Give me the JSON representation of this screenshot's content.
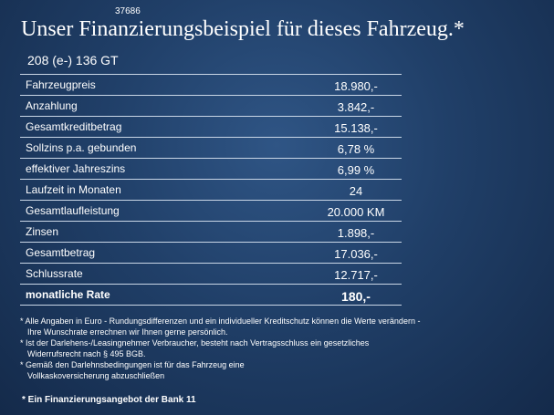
{
  "slide_id": "37686",
  "title": "Unser Finanzierungsbeispiel für dieses Fahrzeug.*",
  "model": "208 (e-) 136 GT",
  "rows": [
    {
      "label": "Fahrzeugpreis",
      "value": "18.980,-"
    },
    {
      "label": "Anzahlung",
      "value": "3.842,-"
    },
    {
      "label": "Gesamtkreditbetrag",
      "value": "15.138,-"
    },
    {
      "label": "Sollzins p.a. gebunden",
      "value": "6,78 %"
    },
    {
      "label": "effektiver Jahreszins",
      "value": "6,99 %"
    },
    {
      "label": "Laufzeit in Monaten",
      "value": "24"
    },
    {
      "label": "Gesamtlaufleistung",
      "value": "20.000 KM"
    },
    {
      "label": "Zinsen",
      "value": "1.898,-"
    },
    {
      "label": "Gesamtbetrag",
      "value": "17.036,-"
    },
    {
      "label": "Schlussrate",
      "value": "12.717,-"
    },
    {
      "label": "monatliche Rate",
      "value": "180,-"
    }
  ],
  "notes": [
    "* Alle Angaben in Euro - Rundungsdifferenzen und ein individueller Kreditschutz können die Werte verändern -",
    "Ihre Wunschrate errechnen wir Ihnen gerne persönlich.",
    "* Ist der Darlehens-/Leasingnehmer Verbraucher, besteht nach Vertragsschluss ein gesetzliches",
    "Widerrufsrecht   nach § 495 BGB.",
    "* Gemäß den Darlehnsbedingungen ist für das Fahrzeug eine",
    "Vollkaskoversicherung abzuschließen"
  ],
  "offer": "* Ein Finanzierungsangebot der Bank 11"
}
